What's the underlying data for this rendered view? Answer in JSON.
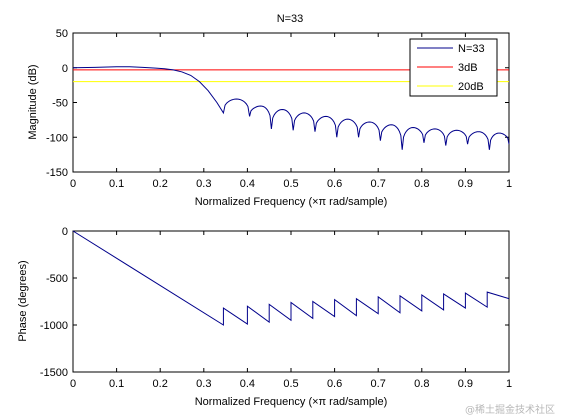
{
  "watermark": "@稀土掘金技术社区",
  "chart_data": [
    {
      "type": "line",
      "title": "N=33",
      "xlabel": "Normalized Frequency  (×π rad/sample)",
      "ylabel": "Magnitude (dB)",
      "xlim": [
        0,
        1
      ],
      "ylim": [
        -150,
        50
      ],
      "xticks": [
        0,
        0.1,
        0.2,
        0.3,
        0.4,
        0.5,
        0.6,
        0.7,
        0.8,
        0.9,
        1
      ],
      "xtick_labels": [
        "0",
        "0.1",
        "0.2",
        "0.3",
        "0.4",
        "0.5",
        "0.6",
        "0.7",
        "0.8",
        "0.9",
        "1"
      ],
      "yticks": [
        -150,
        -100,
        -50,
        0,
        50
      ],
      "ytick_labels": [
        "-150",
        "-100",
        "-50",
        "0",
        "50"
      ],
      "legend": {
        "position": "top-right",
        "entries": [
          "N=33",
          "3dB",
          "20dB"
        ]
      },
      "series": [
        {
          "name": "N=33",
          "color": "#00008b",
          "x": [
            0,
            0.05,
            0.1,
            0.13,
            0.16,
            0.19,
            0.21,
            0.23,
            0.25,
            0.27,
            0.29,
            0.31,
            0.33,
            0.345
          ],
          "y": [
            0,
            0.5,
            1.5,
            1.5,
            0.5,
            -0.5,
            -1.5,
            -3,
            -6,
            -11,
            -20,
            -33,
            -50,
            -65
          ],
          "sidelobe_nulls": [
            0.345,
            0.405,
            0.455,
            0.505,
            0.555,
            0.605,
            0.655,
            0.705,
            0.755,
            0.805,
            0.855,
            0.905,
            0.955,
            1.0
          ],
          "null_depths": [
            -65,
            -70,
            -88,
            -90,
            -92,
            -100,
            -100,
            -105,
            -118,
            -108,
            -112,
            -110,
            -118,
            -110
          ],
          "sidelobe_peaks": [
            -45,
            -55,
            -60,
            -65,
            -70,
            -74,
            -78,
            -82,
            -86,
            -88,
            -90,
            -92,
            -94
          ]
        },
        {
          "name": "3dB",
          "color": "#ff0000",
          "x": [
            0,
            1
          ],
          "y": [
            -3,
            -3
          ]
        },
        {
          "name": "20dB",
          "color": "#ffff00",
          "x": [
            0,
            1
          ],
          "y": [
            -20,
            -20
          ]
        }
      ]
    },
    {
      "type": "line",
      "xlabel": "Normalized Frequency  (×π rad/sample)",
      "ylabel": "Phase (degrees)",
      "xlim": [
        0,
        1
      ],
      "ylim": [
        -1500,
        0
      ],
      "xticks": [
        0,
        0.1,
        0.2,
        0.3,
        0.4,
        0.5,
        0.6,
        0.7,
        0.8,
        0.9,
        1
      ],
      "xtick_labels": [
        "0",
        "0.1",
        "0.2",
        "0.3",
        "0.4",
        "0.5",
        "0.6",
        "0.7",
        "0.8",
        "0.9",
        "1"
      ],
      "yticks": [
        -1500,
        -1000,
        -500,
        0
      ],
      "ytick_labels": [
        "-1500",
        "-1000",
        "-500",
        "0"
      ],
      "series": [
        {
          "name": "phase",
          "color": "#00008b",
          "x": [
            0,
            0.345,
            0.345,
            0.4,
            0.4,
            0.45,
            0.45,
            0.5,
            0.5,
            0.55,
            0.55,
            0.6,
            0.6,
            0.65,
            0.65,
            0.7,
            0.7,
            0.75,
            0.75,
            0.8,
            0.8,
            0.85,
            0.85,
            0.9,
            0.9,
            0.95,
            0.95,
            1.0
          ],
          "y": [
            0,
            -1000,
            -820,
            -990,
            -800,
            -970,
            -780,
            -950,
            -760,
            -930,
            -750,
            -910,
            -730,
            -900,
            -720,
            -880,
            -700,
            -870,
            -690,
            -850,
            -680,
            -840,
            -670,
            -820,
            -660,
            -810,
            -650,
            -720
          ]
        }
      ]
    }
  ]
}
